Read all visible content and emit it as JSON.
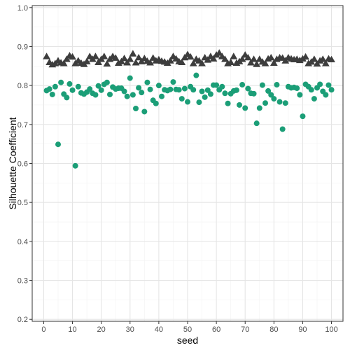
{
  "chart_data": {
    "type": "scatter",
    "title": "",
    "xlabel": "seed",
    "ylabel": "Silhouette Coefficient",
    "xlim": [
      -4,
      104
    ],
    "ylim": [
      0.195,
      1.005
    ],
    "x_ticks": [
      0,
      10,
      20,
      30,
      40,
      50,
      60,
      70,
      80,
      90,
      100
    ],
    "y_ticks": [
      0.2,
      0.3,
      0.4,
      0.5,
      0.6,
      0.7,
      0.8,
      0.9,
      1.0
    ],
    "y_tick_labels": [
      "0.2",
      "0.3",
      "0.4",
      "0.5",
      "0.6",
      "0.7",
      "0.8",
      "0.9",
      "1.0"
    ],
    "grid": true,
    "legend": "none",
    "colors": {
      "panel_border": "#333333",
      "grid_major": "#e5e5e5",
      "grid_minor": "#f2f2f2",
      "triangle_series": "#3d3d3d",
      "circle_series": "#1b9e77"
    },
    "x": [
      1,
      2,
      3,
      4,
      5,
      6,
      7,
      8,
      9,
      10,
      11,
      12,
      13,
      14,
      15,
      16,
      17,
      18,
      19,
      20,
      21,
      22,
      23,
      24,
      25,
      26,
      27,
      28,
      29,
      30,
      31,
      32,
      33,
      34,
      35,
      36,
      37,
      38,
      39,
      40,
      41,
      42,
      43,
      44,
      45,
      46,
      47,
      48,
      49,
      50,
      51,
      52,
      53,
      54,
      55,
      56,
      57,
      58,
      59,
      60,
      61,
      62,
      63,
      64,
      65,
      66,
      67,
      68,
      69,
      70,
      71,
      72,
      73,
      74,
      75,
      76,
      77,
      78,
      79,
      80,
      81,
      82,
      83,
      84,
      85,
      86,
      87,
      88,
      89,
      90,
      91,
      92,
      93,
      94,
      95,
      96,
      97,
      98,
      99,
      100
    ],
    "series": [
      {
        "marker": "triangle",
        "values": [
          0.873,
          0.858,
          0.852,
          0.855,
          0.862,
          0.857,
          0.855,
          0.866,
          0.875,
          0.872,
          0.855,
          0.862,
          0.856,
          0.853,
          0.86,
          0.873,
          0.866,
          0.873,
          0.858,
          0.866,
          0.873,
          0.854,
          0.866,
          0.873,
          0.869,
          0.856,
          0.86,
          0.868,
          0.857,
          0.866,
          0.88,
          0.857,
          0.87,
          0.86,
          0.868,
          0.861,
          0.857,
          0.869,
          0.862,
          0.865,
          0.861,
          0.859,
          0.856,
          0.862,
          0.873,
          0.867,
          0.86,
          0.858,
          0.87,
          0.878,
          0.872,
          0.855,
          0.866,
          0.862,
          0.855,
          0.87,
          0.864,
          0.873,
          0.867,
          0.877,
          0.882,
          0.873,
          0.866,
          0.855,
          0.858,
          0.873,
          0.856,
          0.86,
          0.866,
          0.877,
          0.87,
          0.857,
          0.866,
          0.853,
          0.866,
          0.859,
          0.855,
          0.867,
          0.87,
          0.856,
          0.866,
          0.87,
          0.869,
          0.862,
          0.87,
          0.867,
          0.865,
          0.866,
          0.863,
          0.867,
          0.872,
          0.855,
          0.859,
          0.866,
          0.854,
          0.862,
          0.866,
          0.855,
          0.867,
          0.865
        ]
      },
      {
        "marker": "circle",
        "values": [
          0.787,
          0.791,
          0.777,
          0.797,
          0.649,
          0.808,
          0.778,
          0.769,
          0.804,
          0.788,
          0.594,
          0.797,
          0.781,
          0.778,
          0.783,
          0.791,
          0.78,
          0.776,
          0.799,
          0.788,
          0.803,
          0.808,
          0.777,
          0.796,
          0.791,
          0.793,
          0.793,
          0.785,
          0.772,
          0.819,
          0.776,
          0.741,
          0.794,
          0.782,
          0.733,
          0.808,
          0.79,
          0.762,
          0.754,
          0.8,
          0.772,
          0.789,
          0.787,
          0.79,
          0.809,
          0.79,
          0.789,
          0.766,
          0.792,
          0.758,
          0.797,
          0.789,
          0.826,
          0.757,
          0.785,
          0.77,
          0.788,
          0.778,
          0.801,
          0.801,
          0.789,
          0.797,
          0.78,
          0.754,
          0.779,
          0.786,
          0.788,
          0.75,
          0.802,
          0.742,
          0.792,
          0.78,
          0.779,
          0.703,
          0.742,
          0.801,
          0.755,
          0.786,
          0.776,
          0.766,
          0.802,
          0.758,
          0.688,
          0.755,
          0.797,
          0.794,
          0.795,
          0.793,
          0.776,
          0.721,
          0.803,
          0.797,
          0.789,
          0.766,
          0.794,
          0.803,
          0.785,
          0.776,
          0.801,
          0.789
        ]
      }
    ]
  }
}
